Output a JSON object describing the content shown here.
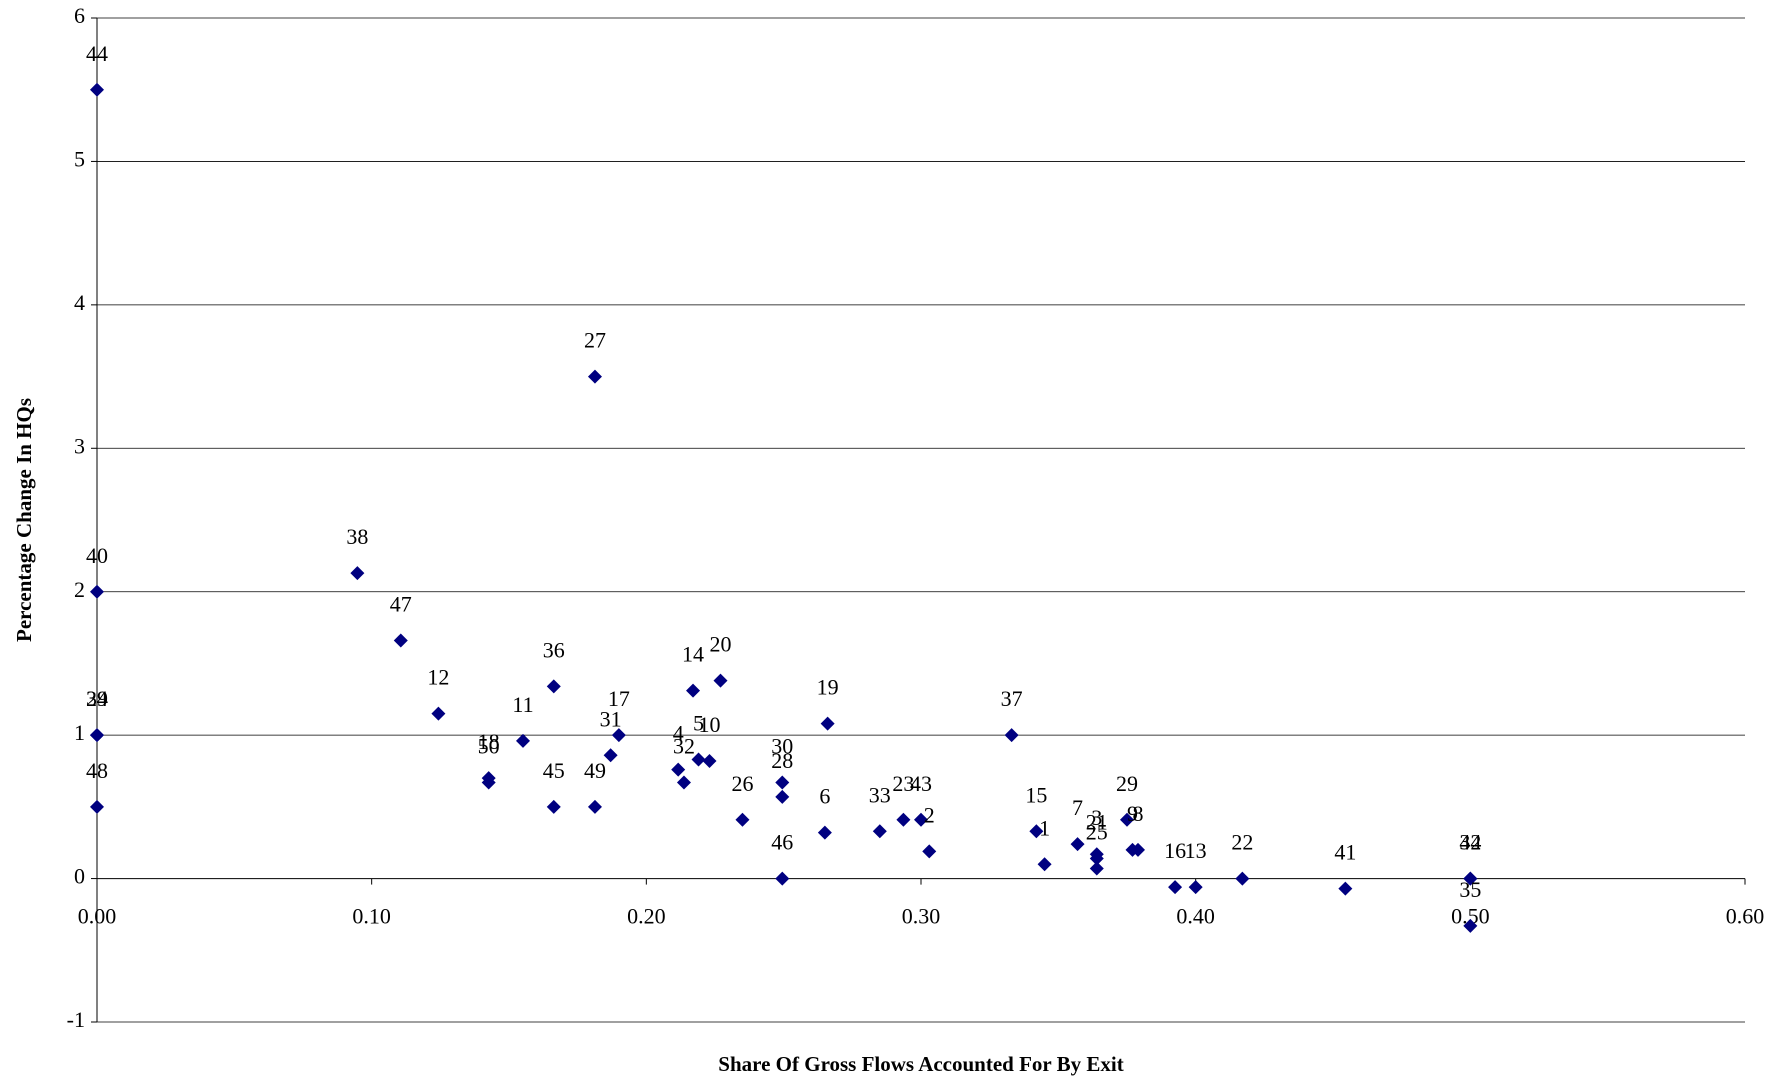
{
  "chart_data": {
    "type": "scatter",
    "x_label": "Share Of Gross Flows Accounted For By Exit",
    "y_label": "Percentage Change In HQs",
    "color": "#000080",
    "grid": true,
    "xlim": [
      0,
      0.6
    ],
    "xticks": [
      {
        "value": 0,
        "label": "0.00"
      },
      {
        "value": 0.1,
        "label": "0.10"
      },
      {
        "value": 0.2,
        "label": "0.20"
      },
      {
        "value": 0.3,
        "label": "0.30"
      },
      {
        "value": 0.4,
        "label": "0.40"
      },
      {
        "value": 0.5,
        "label": "0.50"
      },
      {
        "value": 0.6,
        "label": "0.60"
      }
    ],
    "ylim": [
      -1,
      6
    ],
    "yticks": [
      -1,
      0,
      1,
      2,
      3,
      4,
      5,
      6
    ],
    "point_labels": [
      "44",
      "40",
      "24",
      "39",
      "48",
      "38",
      "47",
      "12",
      "18",
      "50",
      "36",
      "11",
      "45",
      "27",
      "49",
      "17",
      "31",
      "14",
      "20",
      "4",
      "5",
      "10",
      "32",
      "26",
      "30",
      "28",
      "46",
      "19",
      "6",
      "33",
      "23",
      "43",
      "2",
      "37",
      "15",
      "1",
      "7",
      "3",
      "21",
      "25",
      "29",
      "9",
      "8",
      "16",
      "13",
      "22",
      "41",
      "34",
      "42",
      "35"
    ],
    "x": [
      0,
      0,
      0,
      0,
      0,
      0.0948,
      0.1106,
      0.1243,
      0.1426,
      0.1426,
      0.1663,
      0.1551,
      0.1663,
      0.1813,
      0.1813,
      0.19,
      0.187,
      0.217,
      0.227,
      0.2116,
      0.219,
      0.223,
      0.2137,
      0.235,
      0.2495,
      0.2495,
      0.2495,
      0.266,
      0.265,
      0.285,
      0.2936,
      0.3,
      0.303,
      0.333,
      0.342,
      0.345,
      0.357,
      0.364,
      0.364,
      0.364,
      0.375,
      0.377,
      0.379,
      0.3925,
      0.4,
      0.417,
      0.4545,
      0.5,
      0.5,
      0.5
    ],
    "values": [
      5.5,
      2.0,
      1.0,
      1.0,
      0.5,
      2.13,
      1.66,
      1.15,
      0.7,
      0.67,
      1.34,
      0.96,
      0.5,
      3.5,
      0.5,
      1.0,
      0.86,
      1.31,
      1.38,
      0.76,
      0.83,
      0.82,
      0.67,
      0.41,
      0.67,
      0.57,
      0,
      1.08,
      0.32,
      0.33,
      0.41,
      0.41,
      0.19,
      1.0,
      0.33,
      0.1,
      0.24,
      0.17,
      0.14,
      0.07,
      0.41,
      0.2,
      0.2,
      -0.06,
      -0.06,
      0,
      -0.07,
      0,
      0,
      -0.33
    ]
  }
}
